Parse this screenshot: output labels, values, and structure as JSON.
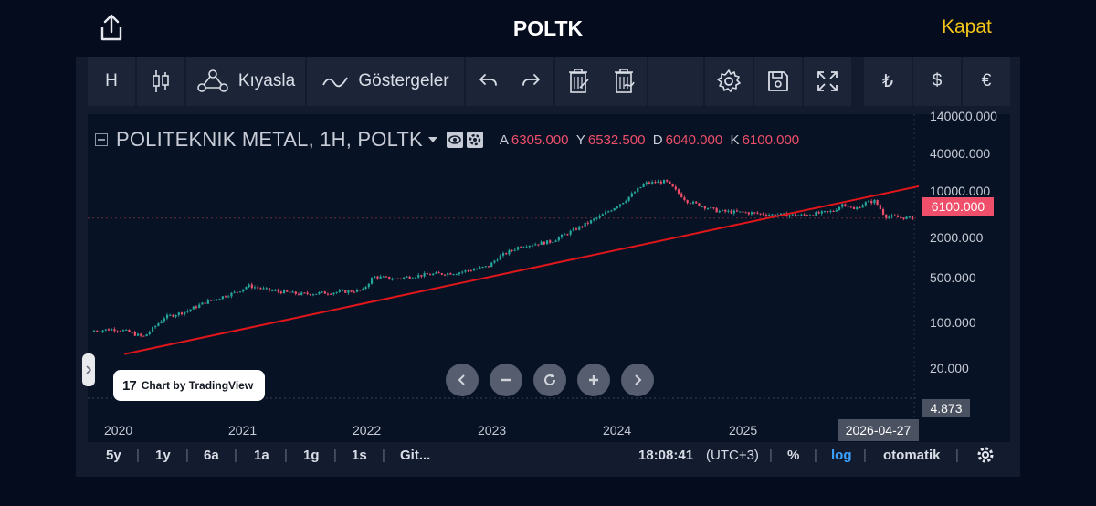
{
  "header": {
    "title": "POLTK",
    "close_label": "Kapat",
    "share_icon": "share-icon"
  },
  "toolbar": {
    "interval_label": "H",
    "compare_label": "Kıyasla",
    "indicators_label": "Göstergeler",
    "currency_try": "₺",
    "currency_usd": "$",
    "currency_eur": "€"
  },
  "legend": {
    "symbol": "POLITEKNIK METAL, 1H, POLTK",
    "open_key": "A",
    "open": "6305.000",
    "high_key": "Y",
    "high": "6532.500",
    "low_key": "D",
    "low": "6040.000",
    "close_key": "K",
    "close": "6100.000"
  },
  "price_axis": {
    "ticks": [
      "140000.000",
      "40000.000",
      "10000.000",
      "2000.000",
      "500.000",
      "100.000",
      "20.000"
    ],
    "last_price": "6100.000",
    "low_mark": "4.873"
  },
  "time_axis": {
    "years": [
      "2020",
      "2021",
      "2022",
      "2023",
      "2024",
      "2025"
    ],
    "cursor_date": "2026-04-27"
  },
  "watermark": {
    "text": "Chart by TradingView",
    "logo": "17"
  },
  "bottom_bar": {
    "ranges": [
      "5y",
      "1y",
      "6a",
      "1a",
      "1g",
      "1s",
      "Git..."
    ],
    "clock": "18:08:41",
    "timezone": "(UTC+3)",
    "percent_label": "%",
    "log_label": "log",
    "auto_label": "otomatik"
  },
  "colors": {
    "up": "#26a69a",
    "down": "#ef4f6a",
    "trendline": "#e0161b",
    "accent": "#f5c518",
    "active": "#3ca2ff"
  },
  "chart_data": {
    "type": "candlestick",
    "scale": "log",
    "symbol": "POLTK",
    "interval": "1H",
    "x_range": [
      "2019-10",
      "2026-04-27"
    ],
    "ylim": [
      4.873,
      140000
    ],
    "series": [
      {
        "x": [
          "2019-10",
          "2019-12",
          "2020-01",
          "2020-03",
          "2020-04",
          "2020-05",
          "2020-07",
          "2020-09",
          "2020-12",
          "2021-01",
          "2021-03",
          "2021-06",
          "2021-09",
          "2021-12",
          "2022-01",
          "2022-03",
          "2022-06",
          "2022-09",
          "2022-12",
          "2023-01",
          "2023-03",
          "2023-06",
          "2023-09",
          "2023-11",
          "2024-01",
          "2024-03",
          "2024-05",
          "2024-07",
          "2024-10",
          "2025-01",
          "2025-03",
          "2025-06",
          "2025-08",
          "2025-09",
          "2025-10",
          "2025-11",
          "2025-12",
          "2026-01",
          "2026-02",
          "2026-04-27"
        ],
        "y": [
          70,
          75,
          72,
          55,
          80,
          120,
          150,
          220,
          330,
          420,
          350,
          300,
          320,
          350,
          600,
          550,
          650,
          700,
          900,
          1300,
          2000,
          2400,
          4500,
          7000,
          12000,
          24000,
          26000,
          12000,
          8000,
          7500,
          7000,
          6800,
          7500,
          8000,
          11000,
          8500,
          11000,
          12000,
          6500,
          6100
        ]
      }
    ],
    "trendline": {
      "from": {
        "x": "2020-01",
        "y": 28
      },
      "to": {
        "x": "2026-04-27",
        "y": 22000
      }
    }
  }
}
